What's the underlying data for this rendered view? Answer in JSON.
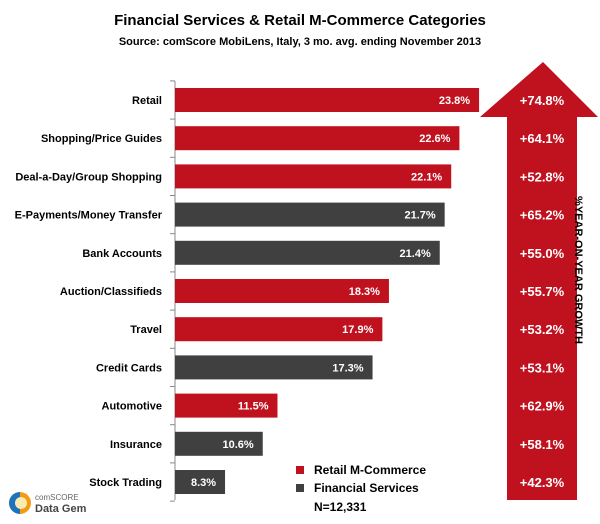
{
  "chart_data": {
    "type": "bar",
    "orientation": "horizontal",
    "title": "Financial Services & Retail M-Commerce Categories",
    "subtitle": "Source: comScore MobiLens, Italy, 3 mo. avg. ending November 2013",
    "categories": [
      "Retail",
      "Shopping/Price Guides",
      "Deal-a-Day/Group Shopping",
      "E-Payments/Money Transfer",
      "Bank Accounts",
      "Auction/Classifieds",
      "Travel",
      "Credit Cards",
      "Automotive",
      "Insurance",
      "Stock Trading"
    ],
    "values": [
      23.8,
      22.6,
      22.1,
      21.7,
      21.4,
      18.3,
      17.9,
      17.3,
      11.5,
      10.6,
      8.3
    ],
    "value_labels": [
      "23.8%",
      "22.6%",
      "22.1%",
      "21.7%",
      "21.4%",
      "18.3%",
      "17.9%",
      "17.3%",
      "11.5%",
      "10.6%",
      "8.3%"
    ],
    "groups": [
      "Retail M-Commerce",
      "Retail M-Commerce",
      "Retail M-Commerce",
      "Financial Services",
      "Financial Services",
      "Retail M-Commerce",
      "Retail M-Commerce",
      "Financial Services",
      "Retail M-Commerce",
      "Financial Services",
      "Financial Services"
    ],
    "growth_labels": [
      "+74.8%",
      "+64.1%",
      "+52.8%",
      "+65.2%",
      "+55.0%",
      "+55.7%",
      "+53.2%",
      "+53.1%",
      "+62.9%",
      "+58.1%",
      "+42.3%"
    ],
    "growth_axis_label": "%YEAR-ON-YEAR GROWTH",
    "legend": [
      {
        "name": "Retail M-Commerce",
        "color": "#c0111f"
      },
      {
        "name": "Financial  Services",
        "color": "#404040"
      }
    ],
    "note": "N=12,331",
    "grid": false,
    "legend_position": "bottom-right"
  },
  "logo": {
    "line1": "comSCORE",
    "line2": "Data Gem"
  }
}
